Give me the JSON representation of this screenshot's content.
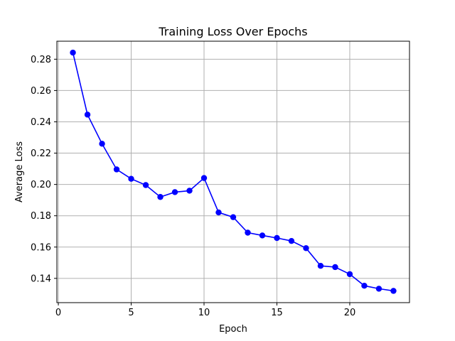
{
  "chart_data": {
    "type": "line",
    "title": "Training Loss Over Epochs",
    "xlabel": "Epoch",
    "ylabel": "Average Loss",
    "xlim": [
      -0.1,
      24.1
    ],
    "ylim": [
      0.1245,
      0.2915
    ],
    "xticks": [
      0,
      5,
      10,
      15,
      20
    ],
    "yticks": [
      0.14,
      0.16,
      0.18,
      0.2,
      0.22,
      0.24,
      0.26,
      0.28
    ],
    "ytick_labels": [
      "0.14",
      "0.16",
      "0.18",
      "0.20",
      "0.22",
      "0.24",
      "0.26",
      "0.28"
    ],
    "grid": true,
    "series": [
      {
        "color": "#0000ff",
        "marker": "circle",
        "x": [
          1,
          2,
          3,
          4,
          5,
          6,
          7,
          8,
          9,
          10,
          11,
          12,
          13,
          14,
          15,
          16,
          17,
          18,
          19,
          20,
          21,
          22,
          23
        ],
        "y": [
          0.2842,
          0.2446,
          0.226,
          0.2096,
          0.2036,
          0.1996,
          0.192,
          0.1951,
          0.196,
          0.2041,
          0.1821,
          0.1791,
          0.1692,
          0.1674,
          0.1658,
          0.1639,
          0.1593,
          0.148,
          0.1472,
          0.1427,
          0.1353,
          0.1334,
          0.132
        ]
      }
    ]
  }
}
